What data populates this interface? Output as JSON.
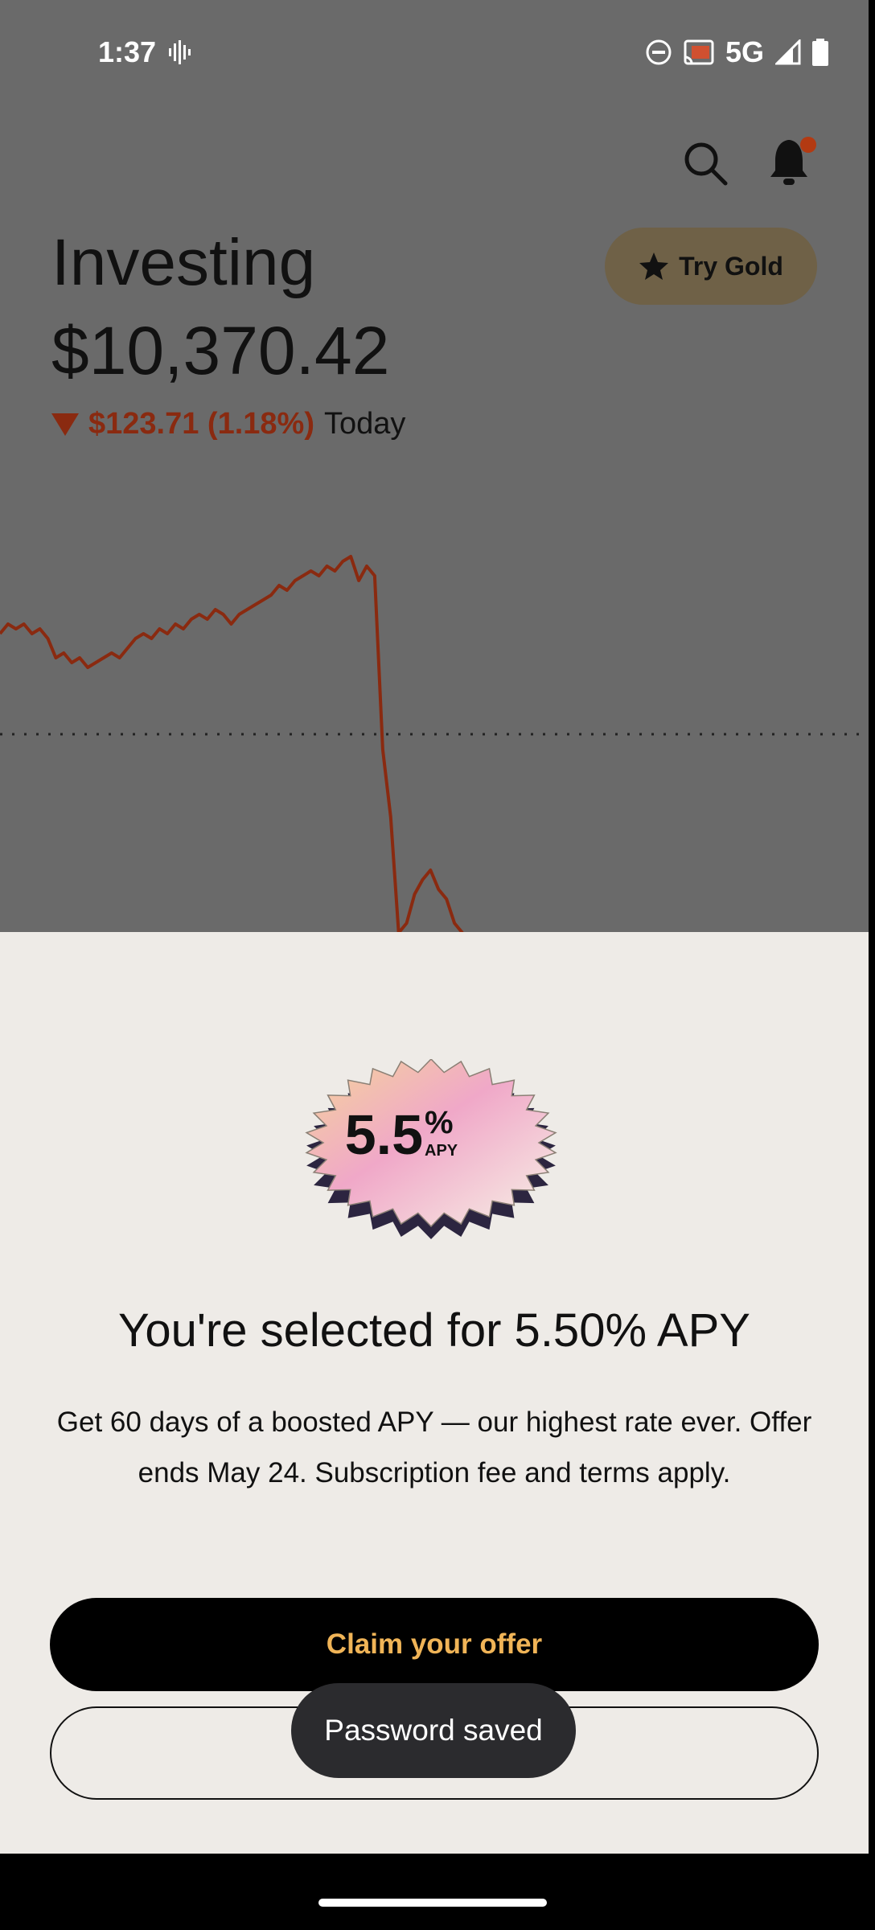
{
  "status_bar": {
    "time": "1:37",
    "network": "5G",
    "icons": [
      "voice-wave-icon",
      "do-not-disturb-icon",
      "cast-icon",
      "signal-icon",
      "battery-icon"
    ]
  },
  "header": {
    "icons": [
      "search-icon",
      "bell-icon"
    ],
    "notification_dot_color": "#b33a12"
  },
  "portfolio": {
    "title": "Investing",
    "balance": "$10,370.42",
    "change": "$123.71 (1.18%)",
    "period": "Today",
    "change_direction": "down",
    "change_color": "#8a2a10"
  },
  "gold_button": {
    "label": "Try Gold",
    "icon": "star-icon"
  },
  "chart_data": {
    "type": "line",
    "series": [
      {
        "color": "#8a2a10",
        "values": [
          62,
          64,
          63,
          64,
          62,
          63,
          61,
          57,
          58,
          56,
          57,
          55,
          56,
          57,
          58,
          57,
          59,
          61,
          62,
          61,
          63,
          62,
          64,
          63,
          65,
          66,
          65,
          67,
          66,
          64,
          66,
          67,
          68,
          69,
          70,
          72,
          71,
          73,
          74,
          75,
          74,
          76,
          75,
          77,
          78,
          73,
          76,
          74,
          38,
          24,
          0,
          2,
          8,
          11,
          13,
          9,
          7,
          2,
          0
        ]
      }
    ],
    "reference_line": "dotted"
  },
  "offer_sheet": {
    "badge": {
      "value": "5.5",
      "percent": "%",
      "unit": "APY"
    },
    "headline": "You're selected for 5.50% APY",
    "body": "Get 60 days of a boosted APY — our highest rate ever. Offer ends May 24. Subscription fee and terms apply.",
    "primary_button": "Claim your offer",
    "accent_color": "#f0b457"
  },
  "toast": {
    "message": "Password saved"
  }
}
